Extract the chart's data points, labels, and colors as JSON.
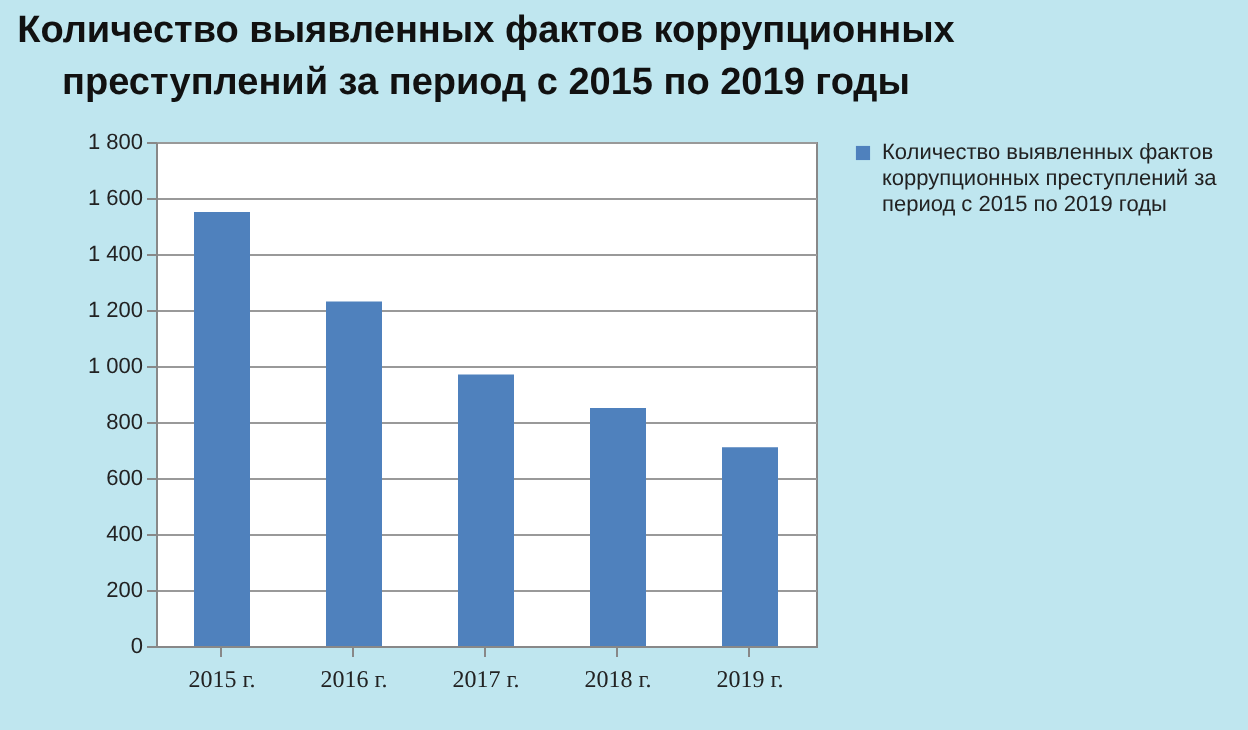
{
  "chart_data": {
    "type": "bar",
    "title": "Количество выявленных фактов коррупционных преступлений за период с 2015 по 2019 годы",
    "categories": [
      "2015 г.",
      "2016 г.",
      "2017 г.",
      "2018 г.",
      "2019 г."
    ],
    "series": [
      {
        "name": "Количество выявленных фактов коррупционных преступлений за период с 2015 по 2019 годы",
        "color": "#4f81bd",
        "values": [
          1550,
          1230,
          970,
          850,
          710
        ]
      }
    ],
    "ylim": [
      0,
      1800
    ],
    "yticks": [
      0,
      200,
      400,
      600,
      800,
      1000,
      1200,
      1400,
      1600,
      1800
    ],
    "grid": "y",
    "legend": "right"
  }
}
